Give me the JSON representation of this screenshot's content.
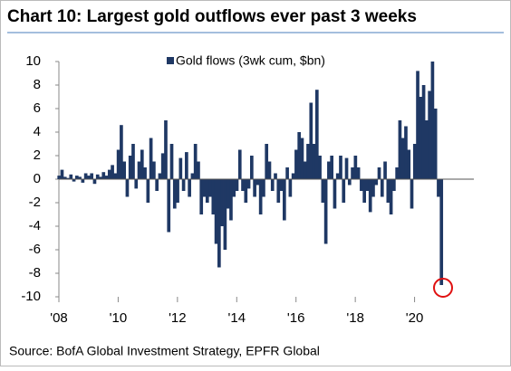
{
  "chart_data": {
    "type": "bar",
    "title": "Chart 10: Largest gold outflows ever past 3 weeks",
    "legend": "Gold flows (3wk cum, $bn)",
    "source": "Source: BofA Global Investment Strategy, EPFR Global",
    "color": "#1f3864",
    "xlim": [
      2008,
      2022
    ],
    "ylim": [
      -10,
      10
    ],
    "yticks": [
      -10,
      -8,
      -6,
      -4,
      -2,
      0,
      2,
      4,
      6,
      8,
      10
    ],
    "xticks": [
      {
        "value": 2008,
        "label": "'08"
      },
      {
        "value": 2010,
        "label": "'10"
      },
      {
        "value": 2012,
        "label": "'12"
      },
      {
        "value": 2014,
        "label": "'14"
      },
      {
        "value": 2016,
        "label": "'16"
      },
      {
        "value": 2018,
        "label": "'18"
      },
      {
        "value": 2020,
        "label": "'20"
      }
    ],
    "x": [
      2008.0,
      2008.1,
      2008.2,
      2008.3,
      2008.4,
      2008.5,
      2008.6,
      2008.7,
      2008.8,
      2008.9,
      2009.0,
      2009.1,
      2009.2,
      2009.3,
      2009.4,
      2009.5,
      2009.6,
      2009.7,
      2009.8,
      2009.9,
      2010.0,
      2010.1,
      2010.2,
      2010.3,
      2010.4,
      2010.5,
      2010.6,
      2010.7,
      2010.8,
      2010.9,
      2011.0,
      2011.1,
      2011.2,
      2011.3,
      2011.4,
      2011.5,
      2011.6,
      2011.7,
      2011.8,
      2011.9,
      2012.0,
      2012.1,
      2012.2,
      2012.3,
      2012.4,
      2012.5,
      2012.6,
      2012.7,
      2012.8,
      2012.9,
      2013.0,
      2013.1,
      2013.2,
      2013.3,
      2013.4,
      2013.5,
      2013.6,
      2013.7,
      2013.8,
      2013.9,
      2014.0,
      2014.1,
      2014.2,
      2014.3,
      2014.4,
      2014.5,
      2014.6,
      2014.7,
      2014.8,
      2014.9,
      2015.0,
      2015.1,
      2015.2,
      2015.3,
      2015.4,
      2015.5,
      2015.6,
      2015.7,
      2015.8,
      2015.9,
      2016.0,
      2016.1,
      2016.2,
      2016.3,
      2016.4,
      2016.5,
      2016.6,
      2016.7,
      2016.8,
      2016.9,
      2017.0,
      2017.1,
      2017.2,
      2017.3,
      2017.4,
      2017.5,
      2017.6,
      2017.7,
      2017.8,
      2017.9,
      2018.0,
      2018.1,
      2018.2,
      2018.3,
      2018.4,
      2018.5,
      2018.6,
      2018.7,
      2018.8,
      2018.9,
      2019.0,
      2019.1,
      2019.2,
      2019.3,
      2019.4,
      2019.5,
      2019.6,
      2019.7,
      2019.8,
      2019.9,
      2020.0,
      2020.1,
      2020.2,
      2020.3,
      2020.4,
      2020.5,
      2020.6,
      2020.7,
      2020.8,
      2020.9
    ],
    "values": [
      0.3,
      0.8,
      0.2,
      0.1,
      0.4,
      -0.2,
      0.3,
      0.2,
      -0.3,
      0.5,
      0.3,
      0.5,
      -0.4,
      0.4,
      0.2,
      0.6,
      0.3,
      0.8,
      1.2,
      0.5,
      2.5,
      4.6,
      1.5,
      -1.5,
      2.0,
      3.0,
      -0.8,
      1.5,
      2.5,
      1.0,
      -2.0,
      3.5,
      1.5,
      -1.0,
      0.5,
      2.2,
      5.0,
      -4.5,
      3.0,
      -2.5,
      -2.0,
      1.8,
      -1.0,
      2.3,
      -1.5,
      0.5,
      3.0,
      1.5,
      -3.0,
      -1.5,
      -2.0,
      -1.5,
      -3.0,
      -5.5,
      -7.5,
      -4.0,
      -6.0,
      -2.5,
      -3.5,
      -1.5,
      -1.0,
      2.5,
      -1.0,
      -2.0,
      -0.8,
      2.0,
      -1.5,
      -0.5,
      -3.0,
      -1.5,
      3.0,
      1.5,
      -1.0,
      0.5,
      -2.0,
      -1.0,
      -3.5,
      1.0,
      -1.5,
      0.5,
      2.5,
      4.0,
      3.5,
      1.5,
      3.0,
      6.5,
      3.0,
      7.6,
      2.0,
      -2.0,
      -5.5,
      1.5,
      2.0,
      -2.5,
      0.5,
      2.0,
      -2.0,
      1.8,
      -0.5,
      1.0,
      2.0,
      1.0,
      -1.0,
      -2.0,
      -1.0,
      -2.8,
      -1.5,
      -0.5,
      1.0,
      -1.5,
      1.5,
      -2.0,
      -3.0,
      -1.0,
      1.0,
      5.0,
      3.5,
      4.5,
      2.5,
      -2.5,
      3.0,
      9.2,
      7.0,
      8.0,
      5.0,
      7.5,
      10,
      6.0,
      -1.5,
      -9.0
    ]
  }
}
